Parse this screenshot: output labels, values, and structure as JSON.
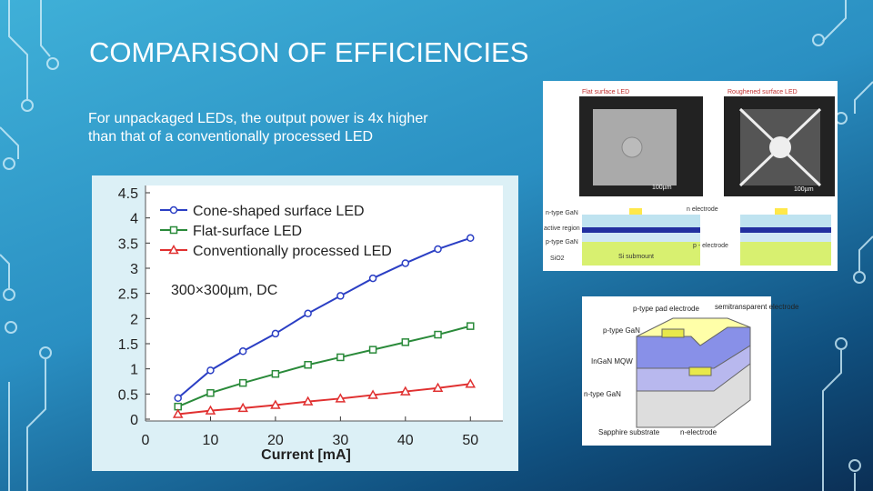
{
  "slide": {
    "title": "COMPARISON OF EFFICIENCIES",
    "body": "For unpackaged LEDs, the output power is 4x higher than that of a conventionally processed LED"
  },
  "chart_data": {
    "type": "line",
    "x": [
      5,
      10,
      15,
      20,
      25,
      30,
      35,
      40,
      45,
      50
    ],
    "series": [
      {
        "name": "Cone-shaped surface LED",
        "color": "#2b3fc4",
        "marker": "circle",
        "values": [
          0.42,
          0.97,
          1.35,
          1.7,
          2.1,
          2.45,
          2.8,
          3.1,
          3.38,
          3.6
        ]
      },
      {
        "name": "Flat-surface LED",
        "color": "#2a8a3a",
        "marker": "square",
        "values": [
          0.25,
          0.52,
          0.72,
          0.9,
          1.08,
          1.23,
          1.38,
          1.53,
          1.68,
          1.85
        ]
      },
      {
        "name": "Conventionally processed LED",
        "color": "#e03030",
        "marker": "triangle",
        "values": [
          0.1,
          0.17,
          0.22,
          0.28,
          0.35,
          0.41,
          0.48,
          0.55,
          0.62,
          0.7
        ]
      }
    ],
    "xlabel": "Current [mA]",
    "annotation": "300×300µm, DC",
    "xlim": [
      0,
      55
    ],
    "xticks": [
      0,
      10,
      20,
      30,
      40,
      50
    ],
    "ylim": [
      0,
      4.5
    ],
    "yticks": [
      0,
      0.5,
      1,
      1.5,
      2,
      2.5,
      3,
      3.5,
      4,
      4.5
    ],
    "legend": "upper-left"
  },
  "diagrams": {
    "top": [
      "Flat surface LED",
      "Roughened surface LED",
      "100µm",
      "100µm",
      "n-type GaN",
      "n electrode",
      "active region",
      "p-type GaN",
      "p - electrode",
      "SiO2",
      "Si submount"
    ],
    "bottom": [
      "p-type pad electrode",
      "semitransparent electrode",
      "p-type GaN",
      "InGaN MQW",
      "n-type GaN",
      "Sapphire substrate",
      "n-electrode"
    ]
  }
}
